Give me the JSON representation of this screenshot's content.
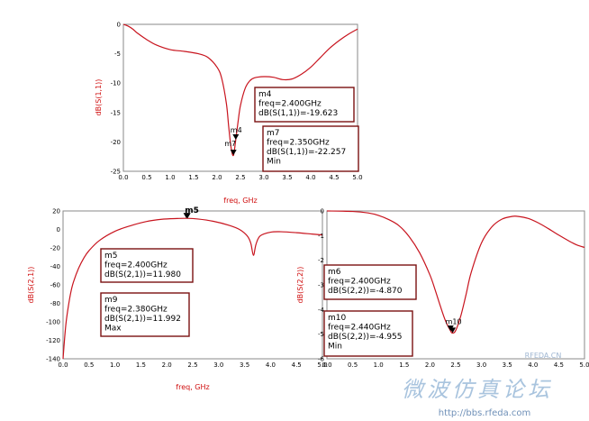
{
  "chart_data": [
    {
      "id": "s11",
      "type": "line",
      "xlabel": "freq, GHz",
      "ylabel": "dB(S(1,1))",
      "xlim": [
        0.0,
        5.0
      ],
      "ylim": [
        -25,
        0
      ],
      "xticks": [
        "0.0",
        "0.5",
        "1.0",
        "1.5",
        "2.0",
        "2.5",
        "3.0",
        "3.5",
        "4.0",
        "4.5",
        "5.0"
      ],
      "yticks": [
        "0",
        "-5",
        "-10",
        "-15",
        "-20",
        "-25"
      ],
      "line_color": "#c8141e",
      "x": [
        0.0,
        0.1,
        0.2,
        0.3,
        0.5,
        0.7,
        1.0,
        1.3,
        1.6,
        1.8,
        2.0,
        2.1,
        2.2,
        2.25,
        2.3,
        2.35,
        2.4,
        2.45,
        2.5,
        2.6,
        2.7,
        2.8,
        3.0,
        3.2,
        3.4,
        3.6,
        3.8,
        4.0,
        4.2,
        4.4,
        4.6,
        4.8,
        5.0
      ],
      "y": [
        0.0,
        -0.3,
        -0.8,
        -1.5,
        -2.6,
        -3.5,
        -4.3,
        -4.6,
        -5.0,
        -5.6,
        -7.3,
        -9.2,
        -13.5,
        -17.5,
        -21.0,
        -22.3,
        -19.6,
        -16.5,
        -13.8,
        -10.9,
        -9.6,
        -9.1,
        -8.9,
        -9.0,
        -9.4,
        -9.3,
        -8.5,
        -7.3,
        -5.7,
        -4.1,
        -2.8,
        -1.7,
        -0.8
      ],
      "markers": [
        {
          "name": "m4",
          "x": 2.4,
          "y": -19.623,
          "lines": [
            "m4",
            "freq=2.400GHz",
            "dB(S(1,1))=-19.623"
          ]
        },
        {
          "name": "m7",
          "x": 2.35,
          "y": -22.257,
          "lines": [
            "m7",
            "freq=2.350GHz",
            "dB(S(1,1))=-22.257",
            "Min"
          ]
        }
      ]
    },
    {
      "id": "s21",
      "type": "line",
      "xlabel": "freq, GHz",
      "ylabel": "dB(S(2,1))",
      "xlim": [
        0.0,
        5.0
      ],
      "ylim": [
        -140,
        20
      ],
      "xticks": [
        "0.0",
        "0.5",
        "1.0",
        "1.5",
        "2.0",
        "2.5",
        "3.0",
        "3.5",
        "4.0",
        "4.5",
        "5.0"
      ],
      "yticks": [
        "20",
        "0",
        "-20",
        "-40",
        "-60",
        "-80",
        "-100",
        "-120",
        "-140"
      ],
      "line_color": "#c8141e",
      "x": [
        0.0,
        0.03,
        0.06,
        0.1,
        0.15,
        0.2,
        0.3,
        0.4,
        0.5,
        0.7,
        1.0,
        1.3,
        1.6,
        1.9,
        2.2,
        2.38,
        2.6,
        2.9,
        3.2,
        3.4,
        3.55,
        3.62,
        3.67,
        3.72,
        3.8,
        4.0,
        4.2,
        4.5,
        4.8,
        5.0
      ],
      "y": [
        -140,
        -118,
        -100,
        -84,
        -68,
        -57,
        -42,
        -31,
        -23,
        -12,
        -2,
        4,
        8.5,
        11,
        11.8,
        11.992,
        11.3,
        8.8,
        4.5,
        0,
        -7,
        -15,
        -28,
        -16,
        -7,
        -3,
        -2.5,
        -3.5,
        -5,
        -6
      ],
      "markers": [
        {
          "name": "m5",
          "x": 2.4,
          "y": 11.98,
          "lines": [
            "m5",
            "freq=2.400GHz",
            "dB(S(2,1))=11.980"
          ]
        },
        {
          "name": "m9",
          "x": 2.38,
          "y": 11.992,
          "lines": [
            "m9",
            "freq=2.380GHz",
            "dB(S(2,1))=11.992",
            "Max"
          ]
        }
      ]
    },
    {
      "id": "s22",
      "type": "line",
      "xlabel": "",
      "ylabel": "dB(S(2,2))",
      "xlim": [
        0.0,
        5.0
      ],
      "ylim": [
        -6,
        0
      ],
      "xticks": [
        "0.0",
        "0.5",
        "1.0",
        "1.5",
        "2.0",
        "2.5",
        "3.0",
        "3.5",
        "4.0",
        "4.5",
        "5.0"
      ],
      "yticks": [
        "0",
        "-1",
        "-2",
        "-3",
        "-4",
        "-5",
        "-6"
      ],
      "line_color": "#c8141e",
      "x": [
        0.0,
        0.5,
        0.8,
        1.0,
        1.2,
        1.4,
        1.6,
        1.8,
        2.0,
        2.1,
        2.2,
        2.3,
        2.4,
        2.44,
        2.5,
        2.6,
        2.7,
        2.8,
        3.0,
        3.2,
        3.4,
        3.6,
        3.7,
        3.9,
        4.1,
        4.3,
        4.5,
        4.7,
        4.85,
        5.0
      ],
      "y": [
        0.0,
        -0.02,
        -0.08,
        -0.18,
        -0.35,
        -0.6,
        -1.05,
        -1.7,
        -2.6,
        -3.2,
        -3.85,
        -4.45,
        -4.87,
        -4.955,
        -4.85,
        -4.25,
        -3.4,
        -2.5,
        -1.3,
        -0.65,
        -0.33,
        -0.22,
        -0.22,
        -0.3,
        -0.48,
        -0.72,
        -0.98,
        -1.22,
        -1.38,
        -1.48
      ],
      "markers": [
        {
          "name": "m6",
          "x": 2.4,
          "y": -4.87,
          "lines": [
            "m6",
            "freq=2.400GHz",
            "dB(S(2,2))=-4.870"
          ]
        },
        {
          "name": "m10",
          "x": 2.44,
          "y": -4.955,
          "lines": [
            "m10",
            "freq=2.440GHz",
            "dB(S(2,2))=-4.955",
            "Min"
          ]
        }
      ]
    }
  ],
  "watermark": {
    "site_label": "RFEDA.CN",
    "chinese": "微波仿真论坛",
    "url": "http://bbs.rfeda.com"
  }
}
